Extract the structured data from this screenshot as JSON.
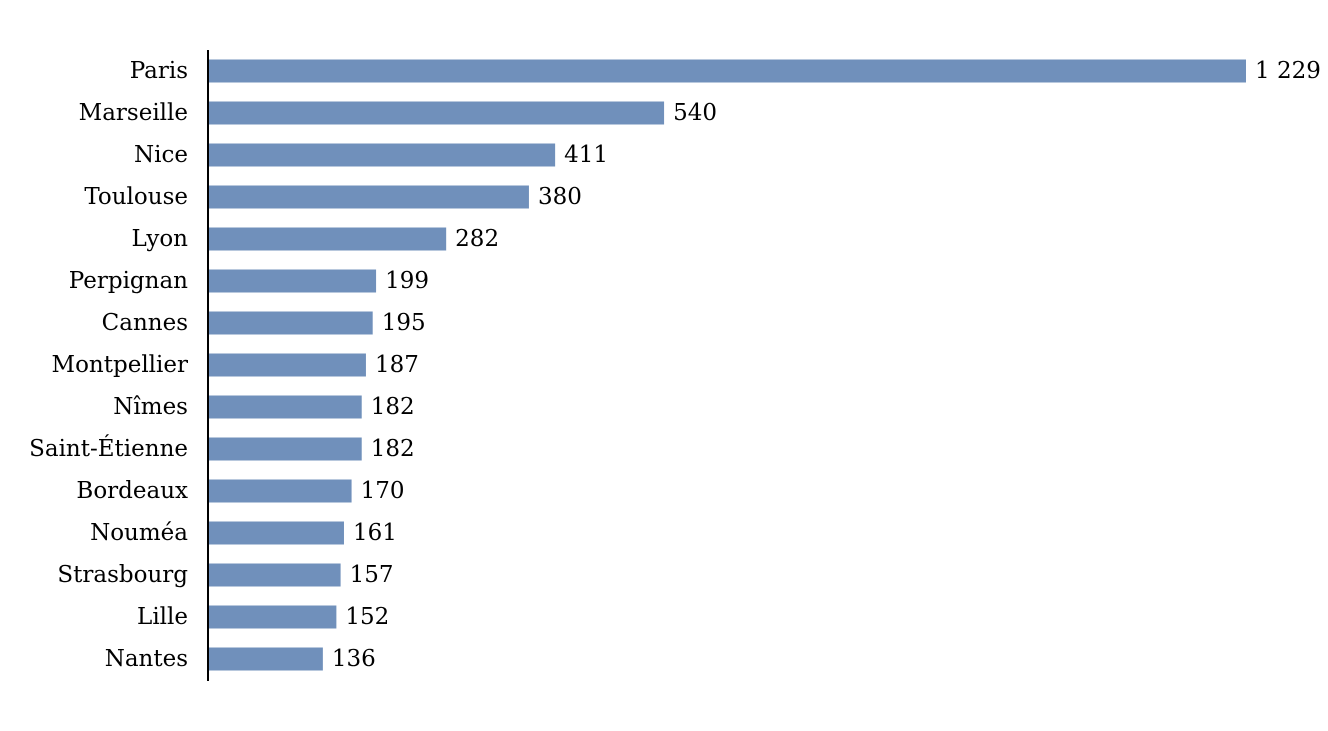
{
  "chart_data": {
    "type": "bar",
    "orientation": "horizontal",
    "categories": [
      "Paris",
      "Marseille",
      "Nice",
      "Toulouse",
      "Lyon",
      "Perpignan",
      "Cannes",
      "Montpellier",
      "Nîmes",
      "Saint-Étienne",
      "Bordeaux",
      "Nouméa",
      "Strasbourg",
      "Lille",
      "Nantes"
    ],
    "values": [
      1229,
      540,
      411,
      380,
      282,
      199,
      195,
      187,
      182,
      182,
      170,
      161,
      157,
      152,
      136
    ],
    "value_labels": [
      "1 229",
      "540",
      "411",
      "380",
      "282",
      "199",
      "195",
      "187",
      "182",
      "182",
      "170",
      "161",
      "157",
      "152",
      "136"
    ],
    "title": "",
    "xlabel": "",
    "ylabel": "",
    "xlim": [
      0,
      1229
    ],
    "grid": false,
    "legend": "none",
    "bar_color": "#7090bb",
    "axis_color": "#000000"
  }
}
